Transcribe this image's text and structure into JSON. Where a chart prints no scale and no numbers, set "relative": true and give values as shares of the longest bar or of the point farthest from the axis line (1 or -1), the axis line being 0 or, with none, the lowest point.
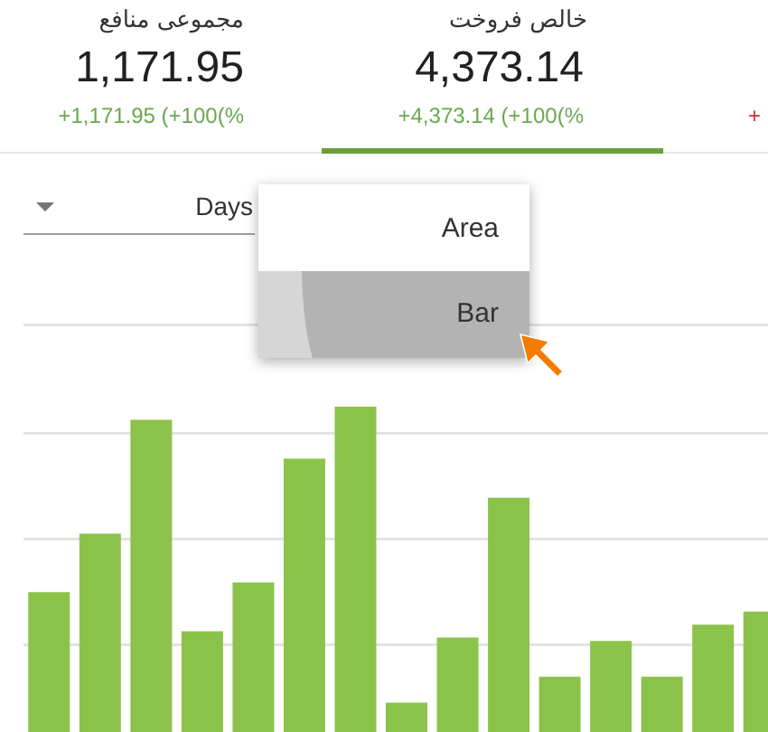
{
  "chart_data": {
    "type": "bar",
    "categories": [
      null,
      null,
      null,
      null,
      null,
      null,
      null,
      null,
      null,
      null,
      null,
      null,
      null,
      null,
      null
    ],
    "values": [
      0.43,
      0.61,
      0.96,
      0.31,
      0.46,
      0.84,
      1,
      0.09,
      0.29,
      0.72,
      0.17,
      0.28,
      0.17,
      0.33,
      0.37
    ],
    "color": "#8bc34a",
    "relative": true,
    "grid": true,
    "annotations": [
      "مجموعی منافع",
      "1,171.95",
      "+1,171.95 (+100(%",
      "خالص فروخت",
      "4,373.14",
      "+4,373.14 (+100(%",
      "+",
      "Days",
      "Area",
      "Bar"
    ]
  }
}
